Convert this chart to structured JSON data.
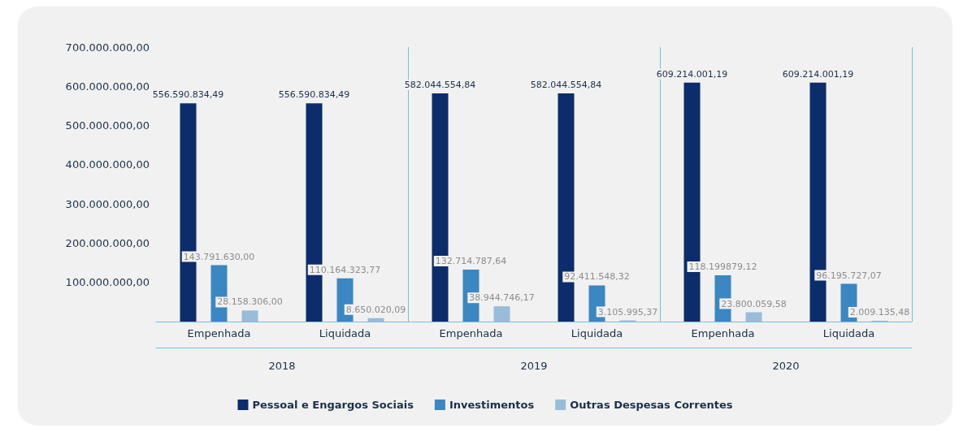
{
  "chart_data": {
    "type": "bar",
    "categories": [
      "Empenhada",
      "Liquidada",
      "Empenhada",
      "Liquidada",
      "Empenhada",
      "Liquidada"
    ],
    "annotations": [
      "2018",
      "2019",
      "2020"
    ],
    "series": [
      {
        "name": "Pessoal e Engargos Sociais",
        "color": "#0b2d6b",
        "values": [
          556590834.49,
          556590834.49,
          582044554.84,
          582044554.84,
          609214001.19,
          609214001.19
        ],
        "value_labels": [
          "556.590.834,49",
          "556.590.834,49",
          "582.044.554,84",
          "582.044.554,84",
          "609.214.001,19",
          "609.214.001,19"
        ]
      },
      {
        "name": "Investimentos",
        "color": "#3a87c2",
        "values": [
          143791630.0,
          110164323.77,
          132714787.64,
          92411548.32,
          118199879.12,
          96195727.07
        ],
        "value_labels": [
          "143.791.630,00",
          "110.164.323,77",
          "132.714.787,64",
          "92.411.548,32",
          "118.199879,12",
          "96.195.727,07"
        ]
      },
      {
        "name": "Outras Despesas Correntes",
        "color": "#98bdd9",
        "values": [
          28158306.0,
          8650020.09,
          38944746.17,
          3105995.37,
          23800059.58,
          2009135.48
        ],
        "value_labels": [
          "28.158.306,00",
          "8.650.020,09",
          "38.944.746,17",
          "3.105.995,37",
          "23.800.059,58",
          "2.009.135,48"
        ]
      }
    ],
    "ylim": [
      0,
      700000000
    ],
    "yticks": [
      {
        "value": 100000000,
        "label": "100.000.000,00"
      },
      {
        "value": 200000000,
        "label": "200.000.000,00"
      },
      {
        "value": 300000000,
        "label": "300.000.000,00"
      },
      {
        "value": 400000000,
        "label": "400.000.000,00"
      },
      {
        "value": 500000000,
        "label": "500.000.000,00"
      },
      {
        "value": 600000000,
        "label": "600.000.000,00"
      },
      {
        "value": 700000000,
        "label": "700.000.000,00"
      }
    ],
    "grid": false,
    "legend": "bottom"
  }
}
